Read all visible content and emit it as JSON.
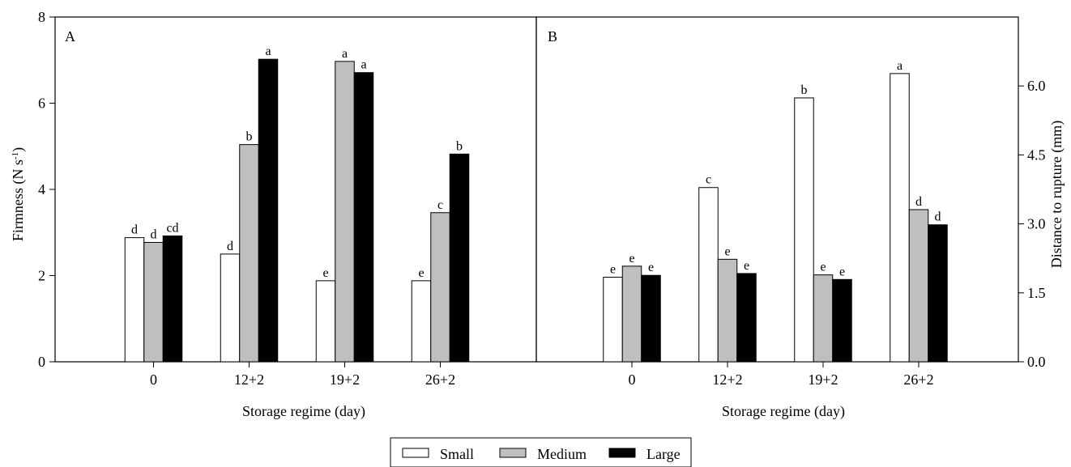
{
  "chart_data": [
    {
      "panel_label": "A",
      "type": "bar",
      "categories": [
        "0",
        "12+2",
        "19+2",
        "26+2"
      ],
      "xlabel": "Storage regime (day)",
      "ylabel_main": "Firmness (N s",
      "ylabel_sup": "-1",
      "ylabel_end": ")",
      "ylim": [
        0,
        8
      ],
      "yticks": [
        "0",
        "2",
        "4",
        "6",
        "8"
      ],
      "series": [
        {
          "name": "Small",
          "values": [
            2.88,
            2.5,
            1.88,
            1.88
          ],
          "letters": [
            "d",
            "d",
            "e",
            "e"
          ]
        },
        {
          "name": "Medium",
          "values": [
            2.77,
            5.04,
            6.97,
            3.46
          ],
          "letters": [
            "d",
            "b",
            "a",
            "c"
          ]
        },
        {
          "name": "Large",
          "values": [
            2.92,
            7.02,
            6.71,
            4.82
          ],
          "letters": [
            "cd",
            "a",
            "a",
            "b"
          ]
        }
      ]
    },
    {
      "panel_label": "B",
      "type": "bar",
      "categories": [
        "0",
        "12+2",
        "19+2",
        "26+2"
      ],
      "xlabel": "Storage regime (day)",
      "ylabel": "Distance to rupture (mm)",
      "ylim": [
        0,
        7.5
      ],
      "yticks": [
        "0.0",
        "1.5",
        "3.0",
        "4.5",
        "6.0"
      ],
      "series": [
        {
          "name": "Small",
          "values": [
            1.84,
            3.79,
            5.74,
            6.27
          ],
          "letters": [
            "e",
            "c",
            "b",
            "a"
          ]
        },
        {
          "name": "Medium",
          "values": [
            2.08,
            2.23,
            1.89,
            3.31
          ],
          "letters": [
            "e",
            "e",
            "e",
            "d"
          ]
        },
        {
          "name": "Large",
          "values": [
            1.88,
            1.92,
            1.79,
            2.98
          ],
          "letters": [
            "e",
            "e",
            "e",
            "d"
          ]
        }
      ]
    }
  ],
  "legend": {
    "position": "bottom-center",
    "items": [
      {
        "label": "Small",
        "color": "#ffffff"
      },
      {
        "label": "Medium",
        "color": "#bfbfbf"
      },
      {
        "label": "Large",
        "color": "#000000"
      }
    ]
  },
  "colors": {
    "small": "#ffffff",
    "medium": "#bfbfbf",
    "large": "#000000",
    "axis": "#000000"
  }
}
